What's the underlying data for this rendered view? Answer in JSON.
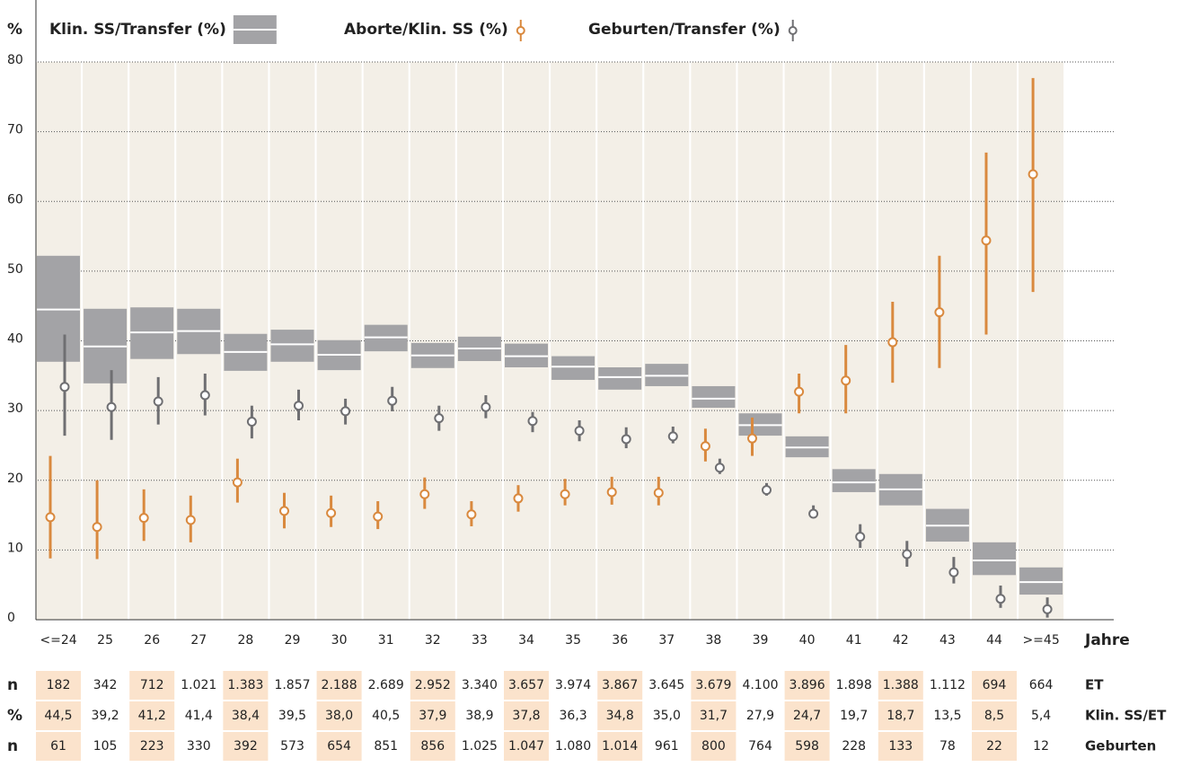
{
  "chart_data": {
    "type": "range",
    "y_label": "%",
    "x_label": "Jahre",
    "categories": [
      "<=24",
      "25",
      "26",
      "27",
      "28",
      "29",
      "30",
      "31",
      "32",
      "33",
      "34",
      "35",
      "36",
      "37",
      "38",
      "39",
      "40",
      "41",
      "42",
      "43",
      "44",
      ">=45"
    ],
    "ylim": [
      0,
      80
    ],
    "yticks": [
      0,
      10,
      20,
      30,
      40,
      50,
      60,
      70,
      80
    ],
    "grid": true,
    "series": [
      {
        "name": "Klin. SS/Transfer (%)",
        "kind": "box",
        "color": "#a3a3a6",
        "values": [
          44.5,
          39.2,
          41.2,
          41.4,
          38.4,
          39.5,
          38.0,
          40.5,
          37.9,
          38.9,
          37.8,
          36.3,
          34.8,
          35.0,
          31.7,
          27.9,
          24.7,
          19.7,
          18.7,
          13.5,
          8.5,
          5.4
        ],
        "value_labels": [
          "44,5",
          "39,2",
          "41,2",
          "41,4",
          "38,4",
          "39,5",
          "38,0",
          "40,5",
          "37,9",
          "38,9",
          "37,8",
          "36,3",
          "34,8",
          "35,0",
          "31,7",
          "27,9",
          "24,7",
          "19,7",
          "18,7",
          "13,5",
          "8,5",
          "5,4"
        ],
        "lower": [
          37.0,
          33.9,
          37.4,
          38.1,
          35.7,
          37.0,
          35.8,
          38.5,
          36.1,
          37.1,
          36.2,
          34.4,
          33.0,
          33.5,
          30.4,
          26.4,
          23.3,
          18.3,
          16.4,
          11.2,
          6.4,
          3.6
        ],
        "upper": [
          52.2,
          44.6,
          44.8,
          44.6,
          41.0,
          41.6,
          40.1,
          42.3,
          39.7,
          40.6,
          39.6,
          37.8,
          36.2,
          36.7,
          33.5,
          29.6,
          26.3,
          21.6,
          20.9,
          15.9,
          11.1,
          7.5
        ]
      },
      {
        "name": "Aborte/Klin. SS (%)",
        "kind": "point",
        "color": "#d9893e",
        "values": [
          14.7,
          13.3,
          14.6,
          14.3,
          19.7,
          15.6,
          15.3,
          14.8,
          18.0,
          15.1,
          17.4,
          18.0,
          18.3,
          18.2,
          24.9,
          26.0,
          32.7,
          34.3,
          39.8,
          44.1,
          54.4,
          63.9
        ],
        "lower": [
          8.8,
          8.7,
          11.3,
          11.1,
          16.8,
          13.1,
          13.3,
          13.0,
          15.9,
          13.4,
          15.5,
          16.4,
          16.5,
          16.4,
          22.7,
          23.5,
          29.6,
          29.6,
          34.0,
          36.1,
          40.9,
          47.0
        ],
        "upper": [
          23.5,
          20.0,
          18.7,
          17.8,
          23.1,
          18.2,
          17.8,
          17.0,
          20.4,
          17.0,
          19.3,
          20.2,
          20.5,
          20.5,
          27.4,
          29.0,
          35.3,
          39.4,
          45.6,
          52.2,
          67.0,
          77.7
        ]
      },
      {
        "name": "Geburten/Transfer (%)",
        "kind": "point",
        "color": "#6f6f72",
        "values": [
          33.4,
          30.5,
          31.3,
          32.2,
          28.4,
          30.7,
          29.9,
          31.4,
          28.9,
          30.5,
          28.5,
          27.1,
          25.9,
          26.3,
          21.8,
          18.6,
          15.2,
          11.9,
          9.4,
          6.8,
          3.0,
          1.5
        ],
        "lower": [
          26.4,
          25.8,
          28.0,
          29.3,
          26.0,
          28.6,
          28.0,
          29.9,
          27.1,
          28.9,
          26.9,
          25.6,
          24.6,
          25.3,
          20.9,
          17.8,
          14.6,
          10.3,
          7.6,
          5.2,
          1.7,
          0.3
        ],
        "upper": [
          40.9,
          35.8,
          34.8,
          35.3,
          30.7,
          33.0,
          31.7,
          33.4,
          30.7,
          32.2,
          29.8,
          28.6,
          27.6,
          27.7,
          23.1,
          19.6,
          16.4,
          13.7,
          11.3,
          9.0,
          4.9,
          3.2
        ]
      }
    ],
    "table": [
      {
        "unit": "n",
        "name": "ET",
        "cells": [
          "182",
          "342",
          "712",
          "1.021",
          "1.383",
          "1.857",
          "2.188",
          "2.689",
          "2.952",
          "3.340",
          "3.657",
          "3.974",
          "3.867",
          "3.645",
          "3.679",
          "4.100",
          "3.896",
          "1.898",
          "1.388",
          "1.112",
          "694",
          "664"
        ]
      },
      {
        "unit": "%",
        "name": "Klin. SS/ET"
      },
      {
        "unit": "n",
        "name": "Geburten",
        "cells": [
          "61",
          "105",
          "223",
          "330",
          "392",
          "573",
          "654",
          "851",
          "856",
          "1.025",
          "1.047",
          "1.080",
          "1.014",
          "961",
          "800",
          "764",
          "598",
          "228",
          "133",
          "78",
          "22",
          "12"
        ]
      }
    ]
  }
}
